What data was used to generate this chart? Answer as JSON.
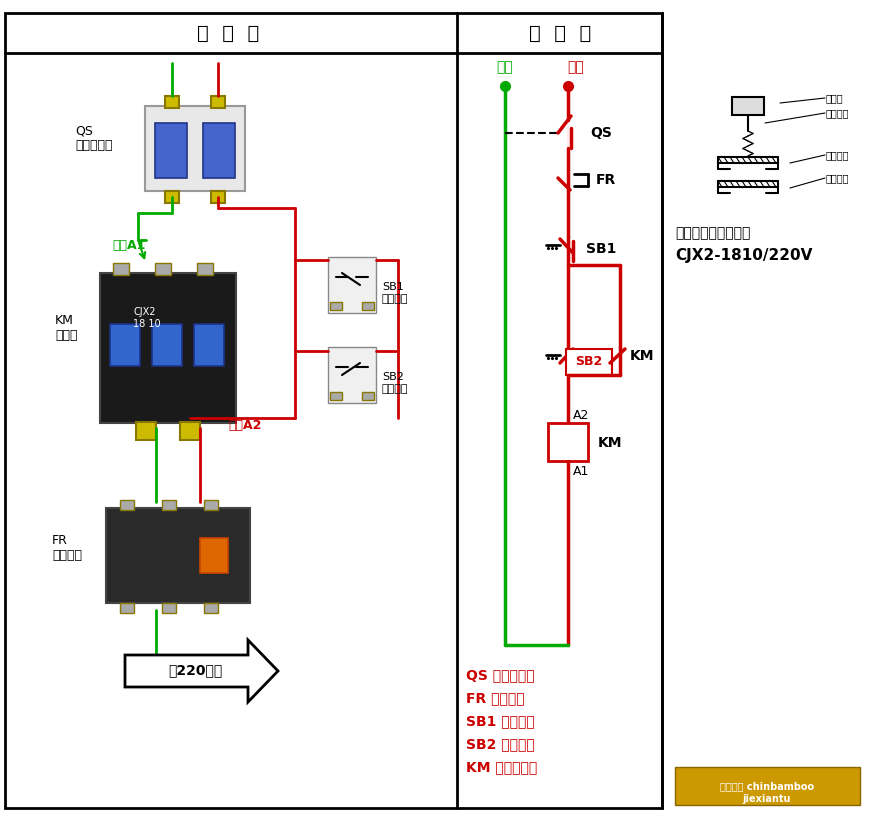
{
  "title_left": "实  物  图",
  "title_right": "原  理  图",
  "bg_color": "#ffffff",
  "green_color": "#00aa00",
  "red_color": "#cc0000",
  "label_qs": "QS\n空气断路器",
  "label_km": "KM\n接触器",
  "label_fr": "FR\n热继电器",
  "label_linequan_a1": "线圈A1",
  "label_linequan_a2": "线圈A2",
  "label_sb1": "SB1\n停止按钮",
  "label_sb2": "SB2\n启动按钮",
  "label_motor": "接220电机",
  "legend_zero": "零线",
  "legend_fire": "火线",
  "schematic_qs": "QS",
  "schematic_fr": "FR",
  "schematic_sb1": "SB1",
  "schematic_sb2": "SB2",
  "schematic_km_coil": "KM",
  "schematic_km_contact": "KM",
  "schematic_a2": "A2",
  "schematic_a1": "A1",
  "note_line1": "注：交流接触器选用",
  "note_line2": "CJX2-1810/220V",
  "legend_qs": "QS 空气断路器",
  "legend_fr": "FR 热继电器",
  "legend_sb1": "SB1 停止按钮",
  "legend_sb2": "SB2 启动按钮",
  "legend_km": "KM 交流接触器",
  "watermark1": "百度知道 chinbamboo",
  "watermark2": "jiexiantu"
}
